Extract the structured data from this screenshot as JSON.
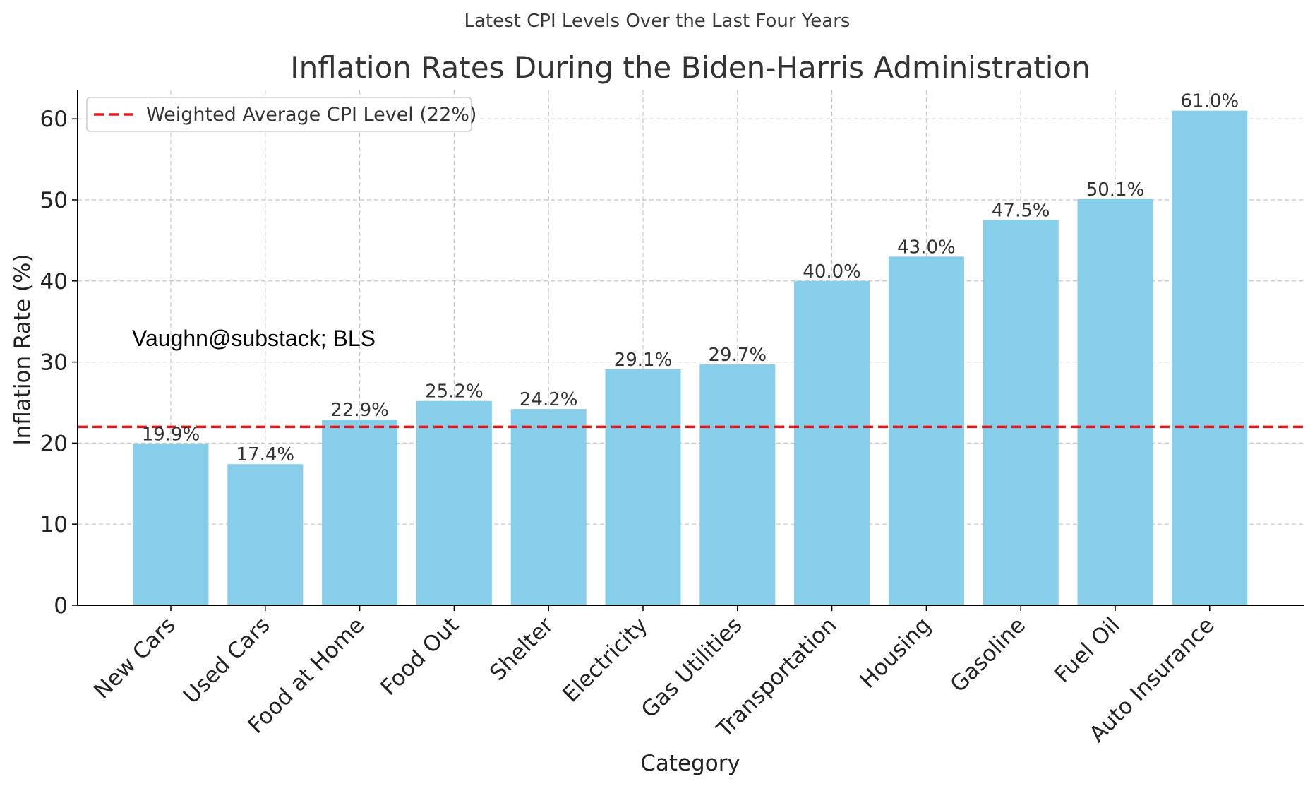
{
  "chart_data": {
    "type": "bar",
    "suptitle": "Latest CPI Levels Over the Last Four Years",
    "title": "Inflation Rates During the Biden-Harris Administration",
    "xlabel": "Category",
    "ylabel": "Inflation Rate (%)",
    "categories": [
      "New Cars",
      "Used Cars",
      "Food at Home",
      "Food Out",
      "Shelter",
      "Electricity",
      "Gas Utilities",
      "Transportation",
      "Housing",
      "Gasoline",
      "Fuel Oil",
      "Auto Insurance"
    ],
    "values": [
      19.9,
      17.4,
      22.9,
      25.2,
      24.2,
      29.1,
      29.7,
      40.0,
      43.0,
      47.5,
      50.1,
      61.0
    ],
    "value_labels": [
      "19.9%",
      "17.4%",
      "22.9%",
      "25.2%",
      "24.2%",
      "29.1%",
      "29.7%",
      "40.0%",
      "43.0%",
      "47.5%",
      "50.1%",
      "61.0%"
    ],
    "ylim": [
      0,
      63.5
    ],
    "yticks": [
      0,
      10,
      20,
      30,
      40,
      50,
      60
    ],
    "ytick_labels": [
      "0",
      "10",
      "20",
      "30",
      "40",
      "50",
      "60"
    ],
    "reference_line": {
      "value": 22,
      "label": "Weighted Average CPI Level (22%)",
      "color": "#e31a1c",
      "style": "dashed"
    },
    "bar_color": "#87ceeb",
    "grid": true,
    "legend_position": "top-left",
    "annotation": "Vaughn@substack; BLS"
  }
}
